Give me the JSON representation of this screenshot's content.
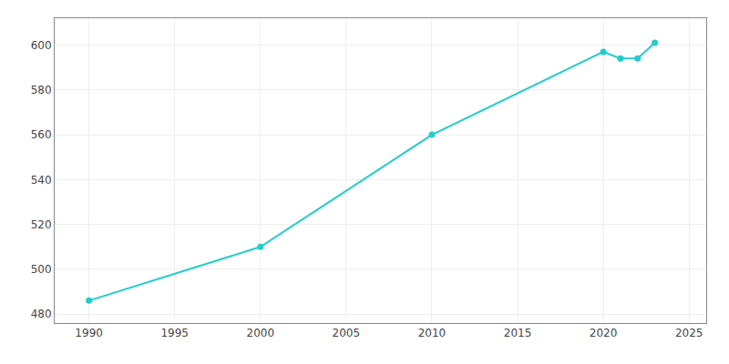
{
  "chart_data": {
    "type": "line",
    "x": [
      1990,
      2000,
      2010,
      2020,
      2021,
      2022,
      2023
    ],
    "values": [
      486,
      510,
      560,
      597,
      594,
      594,
      601
    ],
    "color": "#22CCCC",
    "marker": "circle",
    "xlim": [
      1988,
      2026
    ],
    "ylim": [
      476,
      612
    ],
    "xticks": [
      1990,
      1995,
      2000,
      2005,
      2010,
      2015,
      2020,
      2025
    ],
    "yticks": [
      480,
      500,
      520,
      540,
      560,
      580,
      600
    ],
    "grid": true
  }
}
